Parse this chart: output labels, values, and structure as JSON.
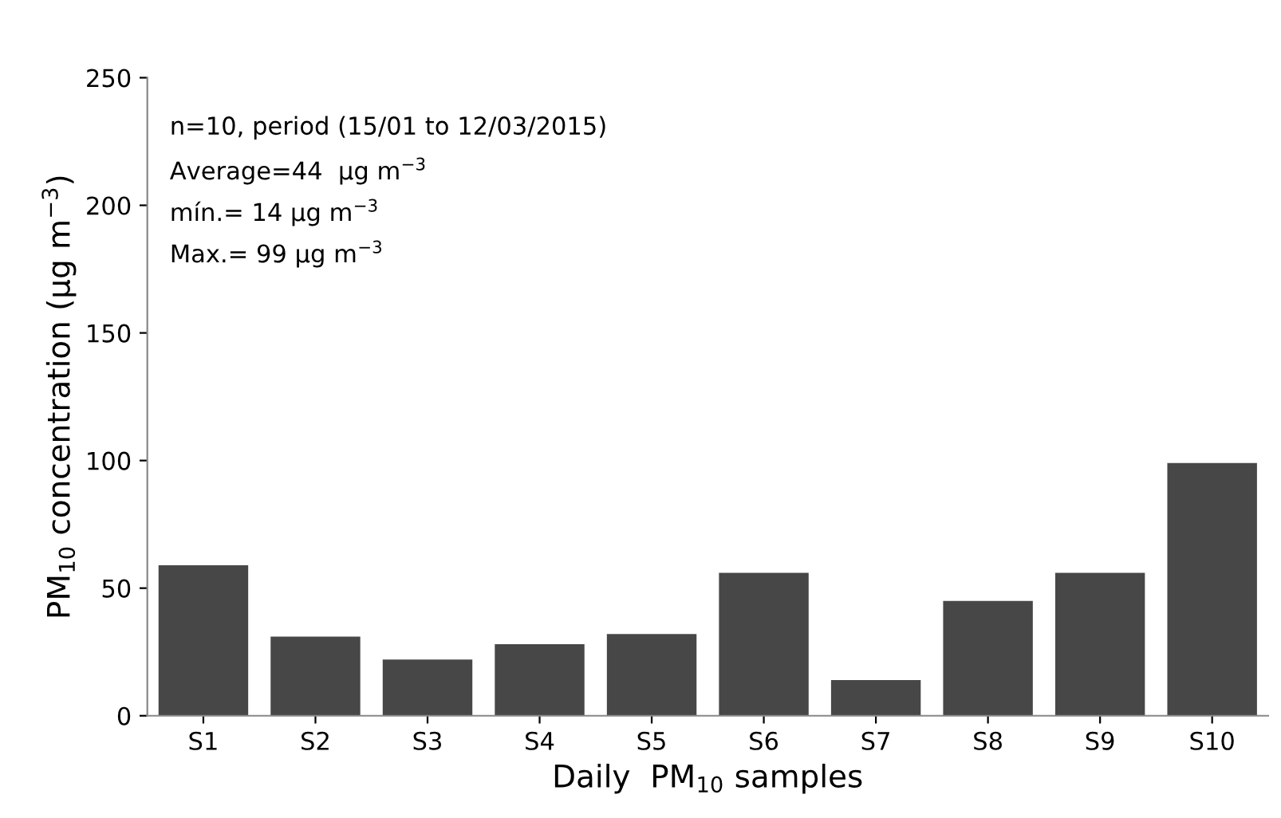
{
  "chart_data": {
    "type": "bar",
    "xlabel": "Daily  PM$_{10}$ samples",
    "ylabel": "PM$_{10}$ concentration (µg m$^{−3}$)",
    "categories": [
      "S1",
      "S2",
      "S3",
      "S4",
      "S5",
      "S6",
      "S7",
      "S8",
      "S9",
      "S10"
    ],
    "values": [
      59,
      31,
      22,
      28,
      32,
      56,
      14,
      45,
      56,
      99
    ],
    "color": "#474747",
    "ylim": [
      0,
      250
    ],
    "yticks": [
      0,
      50,
      100,
      150,
      200,
      250
    ],
    "grid": false,
    "legend": false,
    "annotations": [
      "n=10, period (15/01 to 12/03/2015)",
      "Average=44  µg m$^{−3}$",
      "mín.= 14 µg m$^{−3}$",
      "Max.= 99 µg m$^{−3}$"
    ]
  }
}
